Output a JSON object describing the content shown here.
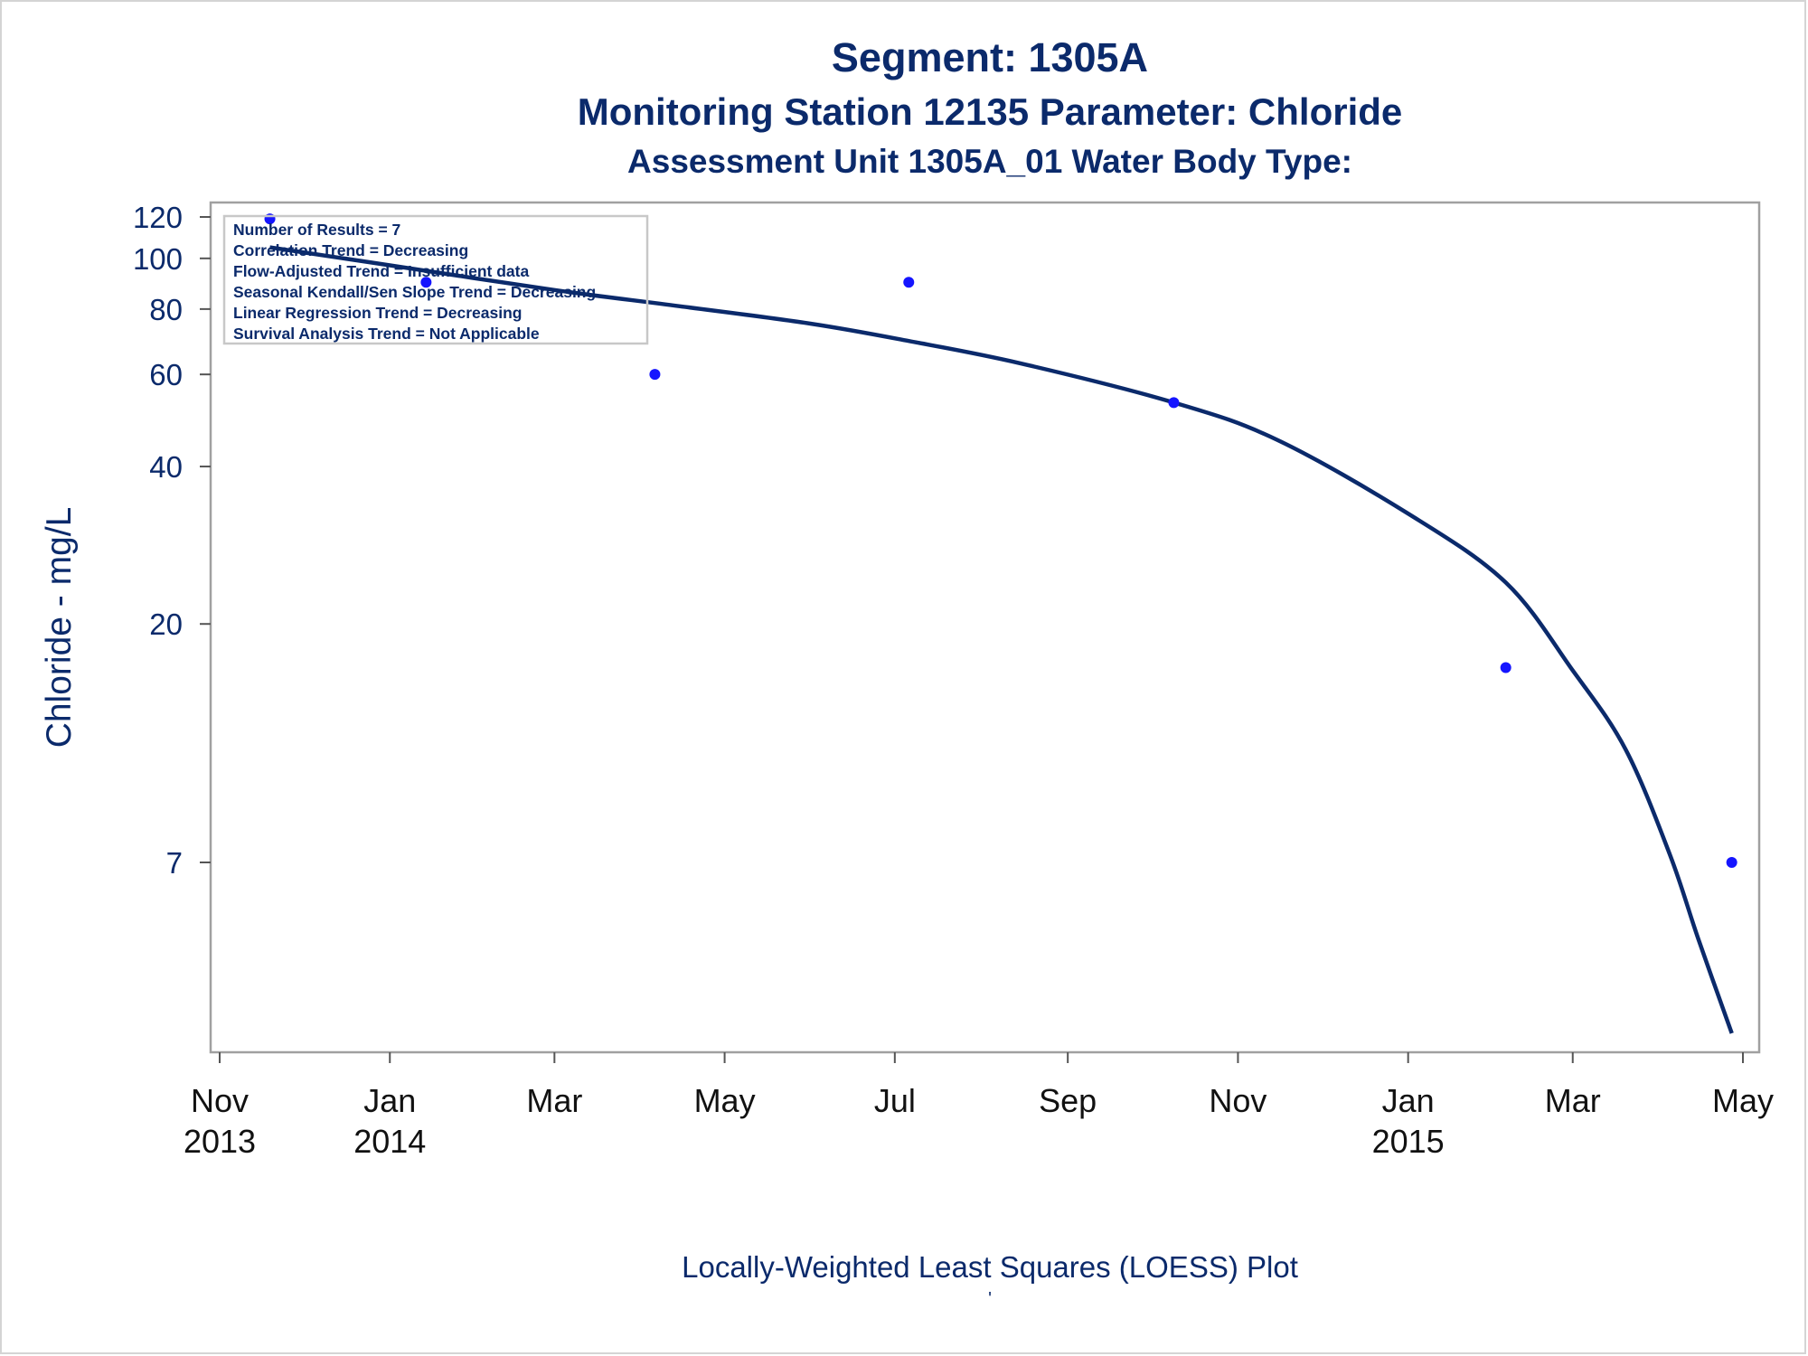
{
  "titles": {
    "line1": "Segment: 1305A",
    "line2": "Monitoring Station 12135 Parameter: Chloride",
    "line3": "Assessment Unit 1305A_01    Water Body Type:"
  },
  "footer": {
    "line1": "Locally-Weighted Least Squares (LOESS) Plot",
    "line2": "'"
  },
  "colors": {
    "text": "#0b2a6b",
    "points": "#1515ff",
    "curve": "#0b2a6b",
    "frame": "#a0a0a0"
  },
  "chart_data": {
    "type": "scatter",
    "ylabel": "Chloride - mg/L",
    "xlabel": "",
    "y_scale": "log",
    "y_ticks": [
      7,
      20,
      40,
      60,
      80,
      100,
      120
    ],
    "x_ticks": [
      {
        "date": "2013-11-01",
        "label": [
          "Nov",
          "2013"
        ]
      },
      {
        "date": "2014-01-01",
        "label": [
          "Jan",
          "2014"
        ]
      },
      {
        "date": "2014-03-01",
        "label": [
          "Mar",
          ""
        ]
      },
      {
        "date": "2014-05-01",
        "label": [
          "May",
          ""
        ]
      },
      {
        "date": "2014-07-01",
        "label": [
          "Jul",
          ""
        ]
      },
      {
        "date": "2014-09-01",
        "label": [
          "Sep",
          ""
        ]
      },
      {
        "date": "2014-11-01",
        "label": [
          "Nov",
          ""
        ]
      },
      {
        "date": "2015-01-01",
        "label": [
          "Jan",
          "2015"
        ]
      },
      {
        "date": "2015-03-01",
        "label": [
          "Mar",
          ""
        ]
      },
      {
        "date": "2015-05-01",
        "label": [
          "May",
          ""
        ]
      }
    ],
    "points": [
      {
        "x": "2013-11-19",
        "y": 119
      },
      {
        "x": "2014-01-14",
        "y": 90
      },
      {
        "x": "2014-04-06",
        "y": 60
      },
      {
        "x": "2014-07-06",
        "y": 90
      },
      {
        "x": "2014-10-09",
        "y": 53
      },
      {
        "x": "2015-02-05",
        "y": 16.5
      },
      {
        "x": "2015-04-27",
        "y": 7
      }
    ],
    "series": [
      {
        "name": "LOESS",
        "x": [
          "2013-11-19",
          "2014-01-01",
          "2014-03-01",
          "2014-04-15",
          "2014-06-01",
          "2014-07-06",
          "2014-08-15",
          "2014-10-09",
          "2014-11-15",
          "2015-01-01",
          "2015-02-05",
          "2015-03-01",
          "2015-03-20",
          "2015-04-05",
          "2015-04-15",
          "2015-04-27"
        ],
        "y": [
          105,
          97,
          87,
          81,
          75,
          69.5,
          63,
          53,
          45,
          32.5,
          24,
          16.3,
          11.5,
          7.2,
          5.0,
          3.3
        ]
      }
    ],
    "annotations": [
      "Number of Results = 7",
      "Correlation Trend = Decreasing",
      "Flow-Adjusted Trend = Insufficient data",
      "Seasonal Kendall/Sen Slope Trend = Decreasing",
      "Linear Regression Trend = Decreasing",
      "Survival Analysis Trend = Not Applicable"
    ]
  }
}
